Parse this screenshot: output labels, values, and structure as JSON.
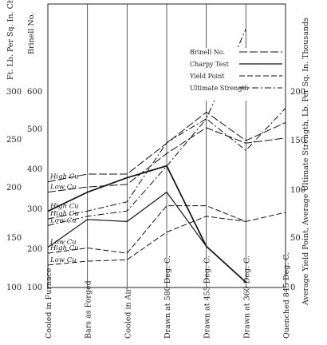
{
  "chart_data": {
    "type": "line",
    "categories": [
      "Cooled in Furnace",
      "Bars as Forged",
      "Cooled in Air",
      "Drawn at 580 Deg. C.",
      "Drawn at 455 Deg. C.",
      "Drawn at 360 Deg. C.",
      "Quenched 845 Deg. C."
    ],
    "left_axes": [
      {
        "label": "Ft. Lb. Per Sq. In. Charpy Test",
        "ticks": [
          "300",
          "250",
          "200",
          "150",
          "100"
        ]
      },
      {
        "label": "Brinell No.",
        "ticks": [
          "600",
          "500",
          "400",
          "300",
          "200",
          "100"
        ]
      }
    ],
    "right_axis": {
      "label": "Average Yield Point, Average Ultimate Strength, Lb. Per Sq. In. Thousands",
      "ticks": [
        "200",
        "150",
        "100",
        "50",
        "0"
      ]
    },
    "legend": [
      {
        "name": "Brinell No.",
        "style": "long-dash"
      },
      {
        "name": "Charpy Test",
        "style": "solid"
      },
      {
        "name": "Yield Point",
        "style": "dash"
      },
      {
        "name": "Ultimate Strength",
        "style": "dash-dot"
      }
    ],
    "ylim_brinell": [
      100,
      650
    ],
    "ylim_strength": [
      0,
      215
    ],
    "series": [
      {
        "name": "Charpy Test High Cu",
        "label": "High Cu",
        "style": "bold",
        "values": [
          248,
          285,
          313,
          336,
          180,
          110,
          null
        ]
      },
      {
        "name": "Charpy Test Low Cu",
        "label": "Low Cu",
        "style": "solid",
        "values": [
          178,
          232,
          228,
          285,
          180,
          110,
          null
        ]
      },
      {
        "name": "Brinell No. High Cu",
        "label": "High Cu",
        "style": "long-dash",
        "values": [
          305,
          320,
          320,
          380,
          440,
          385,
          420
        ]
      },
      {
        "name": "Brinell No. Low Cu",
        "label": "Low Cu",
        "style": "long-dash",
        "values": [
          285,
          295,
          300,
          360,
          410,
          380,
          390
        ]
      },
      {
        "name": "Ultimate Strength High Cu",
        "label": "High Cu",
        "style": "dash-dot",
        "values": [
          52,
          58,
          65,
          110,
          128,
          196,
          null
        ]
      },
      {
        "name": "Ultimate Strength Low Cu",
        "label": "Low Cu",
        "style": "dash-dot",
        "values": [
          47,
          54,
          58,
          92,
          128,
          104,
          136
        ]
      },
      {
        "name": "Yield Point High Cu",
        "label": "High Cu",
        "style": "dash",
        "values": [
          26,
          30,
          26,
          62,
          62,
          50,
          57
        ]
      },
      {
        "name": "Yield Point Low Cu",
        "label": "Low Cu",
        "style": "dash",
        "values": [
          17,
          20,
          21,
          42,
          54,
          50,
          null
        ]
      }
    ]
  }
}
